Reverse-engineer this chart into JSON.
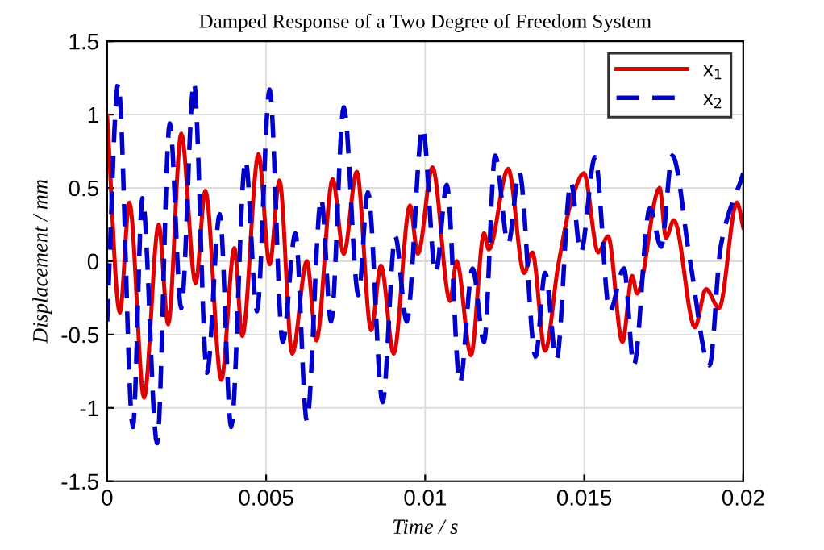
{
  "chart_data": {
    "type": "line",
    "title": "Damped Response of a Two Degree of Freedom System",
    "xlabel": "Time / s",
    "ylabel": "Displacement / mm",
    "xlim": [
      0,
      0.02
    ],
    "ylim": [
      -1.5,
      1.5
    ],
    "xticks": [
      0,
      0.005,
      0.01,
      0.015,
      0.02
    ],
    "yticks": [
      -1.5,
      -1,
      -0.5,
      0,
      0.5,
      1,
      1.5
    ],
    "grid": true,
    "legend": "top right",
    "series": [
      {
        "name": "x$_{1}$",
        "color": "#e00000",
        "line_style": "solid",
        "x": [
          0,
          0.0004,
          0.0007,
          0.00116,
          0.00162,
          0.00192,
          0.00233,
          0.00278,
          0.00309,
          0.00359,
          0.004,
          0.00425,
          0.00476,
          0.00511,
          0.00542,
          0.00582,
          0.00628,
          0.00658,
          0.00709,
          0.00744,
          0.00785,
          0.0083,
          0.00861,
          0.00901,
          0.00952,
          0.00977,
          0.01023,
          0.01078,
          0.01099,
          0.01144,
          0.01185,
          0.012,
          0.01261,
          0.01311,
          0.01337,
          0.01377,
          0.01418,
          0.01465,
          0.01499,
          0.01544,
          0.01575,
          0.0162,
          0.01651,
          0.01666,
          0.01737,
          0.01757,
          0.01782,
          0.01848,
          0.01883,
          0.01924,
          0.0198,
          0.02
        ],
        "values": [
          0.99,
          -0.35,
          0.4,
          -0.93,
          0.25,
          -0.43,
          0.87,
          -0.15,
          0.48,
          -0.81,
          0.09,
          -0.51,
          0.73,
          -0.02,
          0.55,
          -0.63,
          0.0,
          -0.54,
          0.56,
          0.05,
          0.61,
          -0.47,
          -0.03,
          -0.63,
          0.38,
          0.05,
          0.64,
          -0.27,
          0.0,
          -0.64,
          0.19,
          0.08,
          0.63,
          -0.08,
          0.06,
          -0.61,
          -0.03,
          0.45,
          0.6,
          0.06,
          0.17,
          -0.55,
          -0.1,
          -0.22,
          0.5,
          0.16,
          0.28,
          -0.45,
          -0.19,
          -0.32,
          0.4,
          0.23
        ]
      },
      {
        "name": "x$_{2}$",
        "color": "#0000cc",
        "line_style": "dashed",
        "x": [
          0,
          0.00035,
          0.00081,
          0.00111,
          0.00157,
          0.00197,
          0.00233,
          0.00273,
          0.00314,
          0.00354,
          0.0039,
          0.00435,
          0.00471,
          0.00511,
          0.00552,
          0.00592,
          0.00628,
          0.00673,
          0.00704,
          0.00744,
          0.0079,
          0.0082,
          0.00866,
          0.00906,
          0.00942,
          0.00992,
          0.01033,
          0.01068,
          0.01109,
          0.01149,
          0.01185,
          0.0122,
          0.01261,
          0.01296,
          0.01347,
          0.01377,
          0.01413,
          0.01458,
          0.01489,
          0.01534,
          0.0158,
          0.01625,
          0.01656,
          0.01706,
          0.01742,
          0.01777,
          0.01833,
          0.01894,
          0.01929,
          0.02
        ],
        "values": [
          -0.41,
          1.21,
          -1.13,
          0.43,
          -1.24,
          0.94,
          -0.32,
          1.22,
          -0.76,
          0.32,
          -1.13,
          0.69,
          -0.34,
          1.17,
          -0.55,
          0.19,
          -1.09,
          0.43,
          -0.41,
          1.05,
          -0.23,
          0.47,
          -0.96,
          0.17,
          -0.41,
          0.91,
          -0.08,
          0.52,
          -0.83,
          -0.05,
          -0.55,
          0.72,
          0.12,
          0.61,
          -0.65,
          -0.08,
          -0.67,
          0.54,
          0.06,
          0.71,
          -0.34,
          -0.05,
          -0.71,
          0.36,
          0.1,
          0.72,
          0.0,
          -0.71,
          0.1,
          0.6
        ]
      }
    ]
  }
}
